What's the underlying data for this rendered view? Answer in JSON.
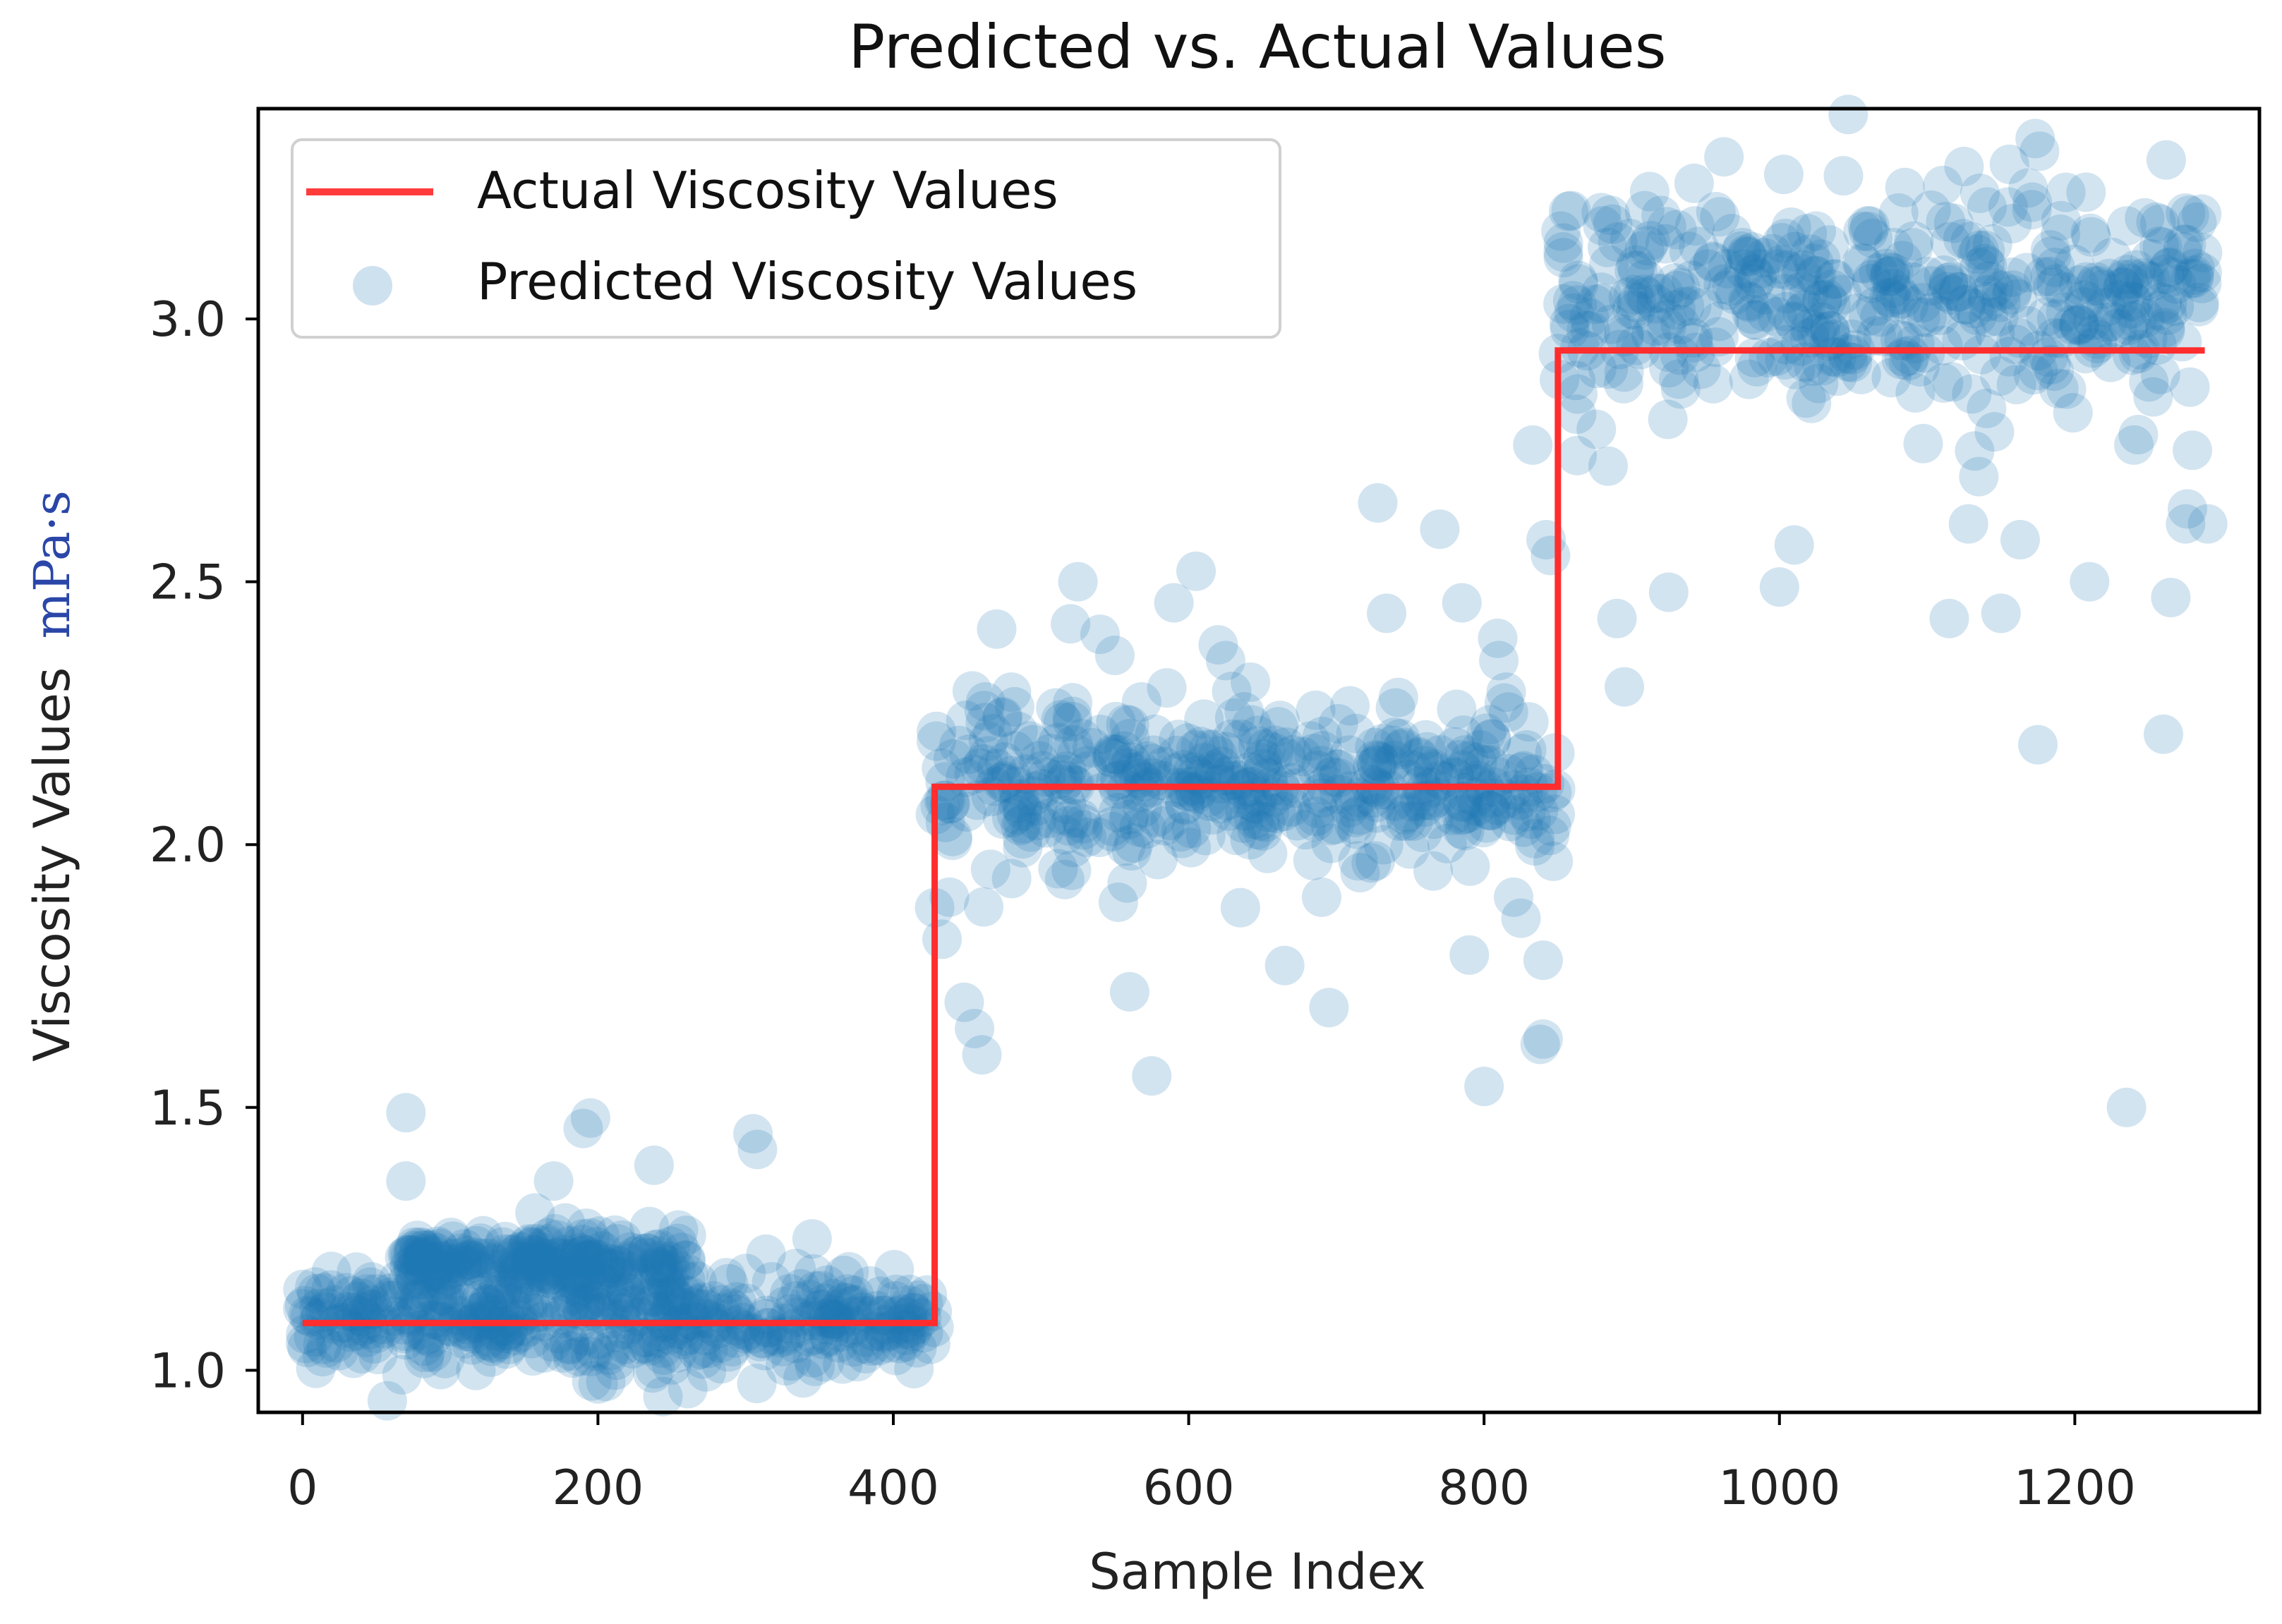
{
  "chart_data": {
    "type": "scatter",
    "title": "Predicted vs. Actual Values",
    "xlabel": "Sample Index",
    "ylabel": "Viscosity Values mPa·s",
    "ylabel_prefix": "Viscosity Values",
    "ylabel_unit": "mPa·s",
    "xlim": [
      -30,
      1325
    ],
    "ylim": [
      0.92,
      3.4
    ],
    "xticks": [
      0,
      200,
      400,
      600,
      800,
      1000,
      1200
    ],
    "yticks": [
      1.0,
      1.5,
      2.0,
      2.5,
      3.0
    ],
    "xtick_labels": [
      "0",
      "200",
      "400",
      "600",
      "800",
      "1000",
      "1200"
    ],
    "ytick_labels": [
      "1.0",
      "1.5",
      "2.0",
      "2.5",
      "3.0"
    ],
    "grid": false,
    "legend": {
      "placement": "top-left",
      "entries": [
        {
          "label": "Actual Viscosity Values",
          "marker": "line",
          "color": "#ff0000"
        },
        {
          "label": "Predicted Viscosity Values",
          "marker": "circle",
          "color": "#1f77b4"
        }
      ]
    },
    "colors": {
      "actual": "#ff0000",
      "predicted": "#1f77b4"
    },
    "series": [
      {
        "name": "Actual Viscosity Values",
        "kind": "step-line",
        "points": [
          [
            0,
            1.09
          ],
          [
            428,
            1.09
          ],
          [
            428,
            2.11
          ],
          [
            850,
            2.11
          ],
          [
            850,
            2.94
          ],
          [
            1288,
            2.94
          ]
        ]
      },
      {
        "name": "Predicted Viscosity Values",
        "kind": "scatter",
        "opacity": 0.2,
        "generated_cluster_summary": [
          {
            "x_range": [
              0,
              428
            ],
            "center": 1.09,
            "spread": 0.045,
            "count": 430
          },
          {
            "x_range": [
              70,
              260
            ],
            "center": 1.2,
            "spread": 0.03,
            "count": 220
          },
          {
            "x_range": [
              428,
              850
            ],
            "center": 2.11,
            "spread": 0.08,
            "count": 420
          },
          {
            "x_range": [
              850,
              1288
            ],
            "center": 3.05,
            "spread": 0.1,
            "count": 440
          }
        ],
        "outliers": [
          [
            70,
            1.49
          ],
          [
            70,
            1.36
          ],
          [
            170,
            1.36
          ],
          [
            190,
            1.46
          ],
          [
            195,
            1.48
          ],
          [
            238,
            1.39
          ],
          [
            244,
            0.95
          ],
          [
            250,
            1.01
          ],
          [
            305,
            1.45
          ],
          [
            308,
            1.42
          ],
          [
            345,
            1.25
          ],
          [
            414,
            1.11
          ],
          [
            428,
            1.88
          ],
          [
            433,
            1.82
          ],
          [
            438,
            1.9
          ],
          [
            448,
            1.7
          ],
          [
            455,
            1.65
          ],
          [
            460,
            1.6
          ],
          [
            470,
            2.41
          ],
          [
            480,
            2.29
          ],
          [
            495,
            2.19
          ],
          [
            510,
            2.26
          ],
          [
            520,
            2.42
          ],
          [
            525,
            2.5
          ],
          [
            540,
            2.4
          ],
          [
            550,
            2.36
          ],
          [
            560,
            1.72
          ],
          [
            575,
            1.56
          ],
          [
            590,
            2.46
          ],
          [
            605,
            2.52
          ],
          [
            620,
            2.38
          ],
          [
            625,
            2.35
          ],
          [
            635,
            1.88
          ],
          [
            665,
            1.77
          ],
          [
            690,
            1.9
          ],
          [
            695,
            1.69
          ],
          [
            728,
            2.65
          ],
          [
            734,
            2.44
          ],
          [
            740,
            2.26
          ],
          [
            742,
            2.28
          ],
          [
            760,
            2.15
          ],
          [
            770,
            2.6
          ],
          [
            785,
            2.46
          ],
          [
            790,
            1.79
          ],
          [
            800,
            1.54
          ],
          [
            805,
            2.2
          ],
          [
            810,
            2.35
          ],
          [
            815,
            2.29
          ],
          [
            820,
            1.9
          ],
          [
            825,
            1.86
          ],
          [
            833,
            2.76
          ],
          [
            838,
            1.62
          ],
          [
            840,
            1.63
          ],
          [
            840,
            1.78
          ],
          [
            842,
            2.58
          ],
          [
            845,
            2.55
          ],
          [
            858,
            2.98
          ],
          [
            863,
            2.74
          ],
          [
            876,
            2.79
          ],
          [
            884,
            2.72
          ],
          [
            890,
            2.43
          ],
          [
            895,
            2.3
          ],
          [
            925,
            2.48
          ],
          [
            1000,
            2.49
          ],
          [
            1010,
            2.57
          ],
          [
            1115,
            2.43
          ],
          [
            1128,
            2.61
          ],
          [
            1135,
            2.7
          ],
          [
            1150,
            2.44
          ],
          [
            1163,
            2.58
          ],
          [
            1175,
            2.19
          ],
          [
            1210,
            2.5
          ],
          [
            1235,
            1.5
          ],
          [
            1240,
            2.76
          ],
          [
            1243,
            2.78
          ],
          [
            1260,
            2.21
          ],
          [
            1265,
            2.47
          ],
          [
            1275,
            2.61
          ],
          [
            1290,
            2.61
          ],
          [
            1125,
            3.29
          ],
          [
            1085,
            3.25
          ]
        ]
      }
    ]
  }
}
